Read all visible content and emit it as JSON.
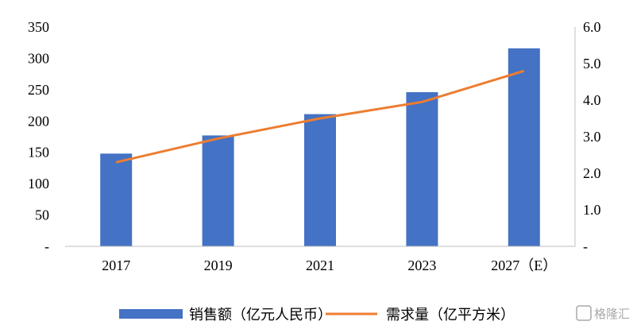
{
  "chart_data": {
    "type": "bar",
    "categories": [
      "2017",
      "2019",
      "2021",
      "2023",
      "2027（E）"
    ],
    "series": [
      {
        "name": "销售额（亿元人民币）",
        "type": "bar",
        "axis": "left",
        "color": "#4472C4",
        "values": [
          148,
          177,
          211,
          246,
          316
        ]
      },
      {
        "name": "需求量（亿平方米）",
        "type": "line",
        "axis": "right",
        "color": "#ED7D31",
        "values": [
          2.3,
          2.95,
          3.5,
          3.95,
          4.8
        ]
      }
    ],
    "y_left": {
      "ylim": [
        0,
        350
      ],
      "ticks": [
        "-",
        "50",
        "100",
        "150",
        "200",
        "250",
        "300",
        "350"
      ]
    },
    "y_right": {
      "ylim": [
        0,
        6
      ],
      "ticks": [
        "-",
        "1.0",
        "2.0",
        "3.0",
        "4.0",
        "5.0",
        "6.0"
      ]
    },
    "grid": false,
    "legend_position": "bottom"
  },
  "watermark": {
    "text": "格隆汇"
  }
}
